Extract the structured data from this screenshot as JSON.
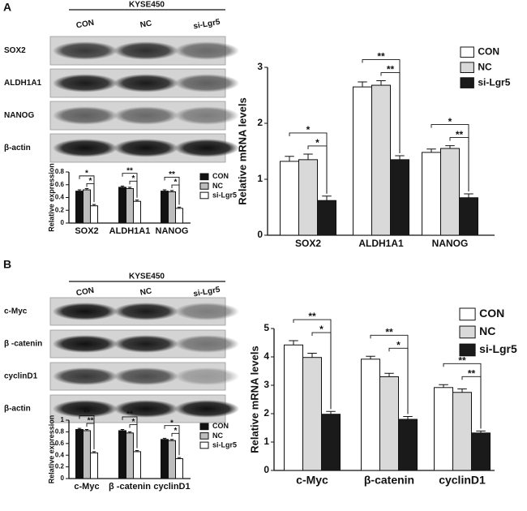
{
  "panels": [
    "A",
    "B"
  ],
  "blots": [
    {
      "cell_line": "KYSE450",
      "lanes": [
        "CON",
        "NC",
        "si-Lgr5"
      ],
      "rows": [
        "SOX2",
        "ALDH1A1",
        "NANOG",
        "β-actin"
      ]
    },
    {
      "cell_line": "KYSE450",
      "lanes": [
        "CON",
        "NC",
        "si-Lgr5"
      ],
      "rows": [
        "c-Myc",
        "β -catenin",
        "cyclinD1",
        "β-actin"
      ]
    }
  ],
  "chart_data": [
    {
      "type": "bar",
      "y_label": "Relative expression",
      "categories": [
        "SOX2",
        "ALDH1A1",
        "NANOG"
      ],
      "series": [
        {
          "name": "CON",
          "color": "#111111",
          "values": [
            0.5,
            0.56,
            0.5
          ],
          "errors": [
            0.02,
            0.02,
            0.02
          ]
        },
        {
          "name": "NC",
          "color": "#bdbdbd",
          "values": [
            0.52,
            0.54,
            0.49
          ],
          "errors": [
            0.02,
            0.02,
            0.02
          ]
        },
        {
          "name": "si-Lgr5",
          "color": "#ffffff",
          "values": [
            0.27,
            0.34,
            0.23
          ],
          "errors": [
            0.02,
            0.02,
            0.02
          ]
        }
      ],
      "significance": [
        [
          "*",
          "*"
        ],
        [
          "**",
          "*"
        ],
        [
          "**",
          "*"
        ]
      ],
      "ylim": [
        0,
        0.8
      ],
      "yticks": [
        0,
        0.2,
        0.4,
        0.6,
        0.8
      ],
      "legend": "right"
    },
    {
      "type": "bar",
      "y_label": "Relative mRNA levels",
      "categories": [
        "SOX2",
        "ALDH1A1",
        "NANOG"
      ],
      "series": [
        {
          "name": "CON",
          "color": "#ffffff",
          "values": [
            1.32,
            2.65,
            1.48
          ],
          "errors": [
            0.09,
            0.09,
            0.06
          ]
        },
        {
          "name": "NC",
          "color": "#d9d9d9",
          "values": [
            1.35,
            2.68,
            1.55
          ],
          "errors": [
            0.1,
            0.08,
            0.05
          ]
        },
        {
          "name": "si-Lgr5",
          "color": "#1a1a1a",
          "values": [
            0.62,
            1.35,
            0.67
          ],
          "errors": [
            0.08,
            0.07,
            0.07
          ]
        }
      ],
      "significance": [
        [
          "*",
          "*"
        ],
        [
          "**",
          "**"
        ],
        [
          "*",
          "**"
        ]
      ],
      "ylim": [
        0,
        3
      ],
      "yticks": [
        0,
        1,
        2,
        3
      ],
      "legend": "right"
    },
    {
      "type": "bar",
      "y_label": "Relative expression",
      "categories": [
        "c-Myc",
        "β -catenin",
        "cyclinD1"
      ],
      "series": [
        {
          "name": "CON",
          "color": "#111111",
          "values": [
            0.84,
            0.82,
            0.67
          ],
          "errors": [
            0.02,
            0.02,
            0.02
          ]
        },
        {
          "name": "NC",
          "color": "#bdbdbd",
          "values": [
            0.82,
            0.78,
            0.65
          ],
          "errors": [
            0.02,
            0.02,
            0.02
          ]
        },
        {
          "name": "si-Lgr5",
          "color": "#ffffff",
          "values": [
            0.44,
            0.46,
            0.34
          ],
          "errors": [
            0.02,
            0.02,
            0.02
          ]
        }
      ],
      "significance": [
        [
          "**",
          "**"
        ],
        [
          "**",
          "*"
        ],
        [
          "*",
          "*"
        ]
      ],
      "ylim": [
        0,
        1
      ],
      "yticks": [
        0,
        0.2,
        0.4,
        0.6,
        0.8,
        1
      ],
      "legend": "right"
    },
    {
      "type": "bar",
      "y_label": "Relative mRNA levels",
      "categories": [
        "c-Myc",
        "β-catenin",
        "cyclinD1"
      ],
      "series": [
        {
          "name": "CON",
          "color": "#ffffff",
          "values": [
            4.42,
            3.92,
            2.92
          ],
          "errors": [
            0.15,
            0.1,
            0.1
          ]
        },
        {
          "name": "NC",
          "color": "#d9d9d9",
          "values": [
            3.98,
            3.3,
            2.75
          ],
          "errors": [
            0.15,
            0.12,
            0.12
          ]
        },
        {
          "name": "si-Lgr5",
          "color": "#1a1a1a",
          "values": [
            1.98,
            1.8,
            1.32
          ],
          "errors": [
            0.1,
            0.1,
            0.07
          ]
        }
      ],
      "significance": [
        [
          "**",
          "*"
        ],
        [
          "**",
          "*"
        ],
        [
          "**",
          "**"
        ]
      ],
      "ylim": [
        0,
        5
      ],
      "yticks": [
        0,
        1,
        2,
        3,
        4,
        5
      ],
      "legend": "right"
    }
  ]
}
